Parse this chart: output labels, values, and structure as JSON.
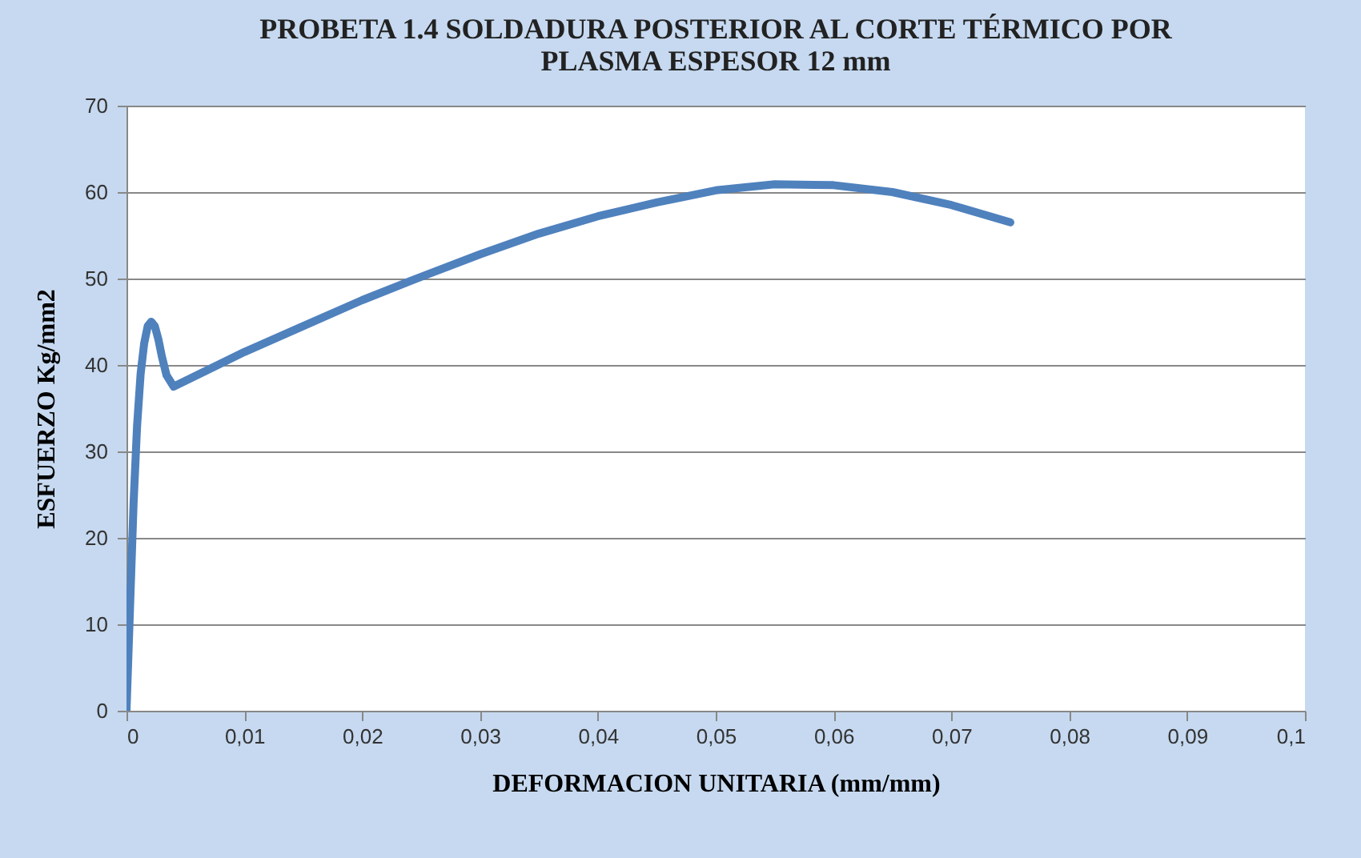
{
  "chart_data": {
    "type": "line",
    "title": "PROBETA 1.4 SOLDADURA POSTERIOR AL CORTE  TÉRMICO POR PLASMA ESPESOR 12 mm",
    "xlabel": "DEFORMACION  UNITARIA  (mm/mm)",
    "ylabel": "ESFUERZO  Kg/mm2",
    "x": [
      0,
      0.0003,
      0.0006,
      0.0009,
      0.0012,
      0.0015,
      0.0018,
      0.0021,
      0.0024,
      0.0027,
      0.003,
      0.0034,
      0.004,
      0.01,
      0.015,
      0.02,
      0.025,
      0.03,
      0.035,
      0.04,
      0.045,
      0.05,
      0.055,
      0.06,
      0.065,
      0.07,
      0.075
    ],
    "series": [
      {
        "color": "#4f81bd",
        "values": [
          0,
          12,
          24,
          33,
          39,
          42.5,
          44.5,
          45,
          44.5,
          43,
          41,
          38.8,
          37.5,
          41.5,
          44.5,
          47.5,
          50.2,
          52.8,
          55.2,
          57.2,
          58.8,
          60.2,
          60.9,
          60.8,
          60,
          58.5,
          56.5
        ]
      }
    ],
    "xlim": [
      0,
      0.1
    ],
    "ylim": [
      0,
      70
    ],
    "xticks": [
      {
        "value": 0,
        "label": "0"
      },
      {
        "value": 0.01,
        "label": "0,01"
      },
      {
        "value": 0.02,
        "label": "0,02"
      },
      {
        "value": 0.03,
        "label": "0,03"
      },
      {
        "value": 0.04,
        "label": "0,04"
      },
      {
        "value": 0.05,
        "label": "0,05"
      },
      {
        "value": 0.06,
        "label": "0,06"
      },
      {
        "value": 0.07,
        "label": "0,07"
      },
      {
        "value": 0.08,
        "label": "0,08"
      },
      {
        "value": 0.09,
        "label": "0,09"
      },
      {
        "value": 0.1,
        "label": "0,1"
      }
    ],
    "yticks": [
      0,
      10,
      20,
      30,
      40,
      50,
      60,
      70
    ],
    "grid": "y",
    "marker": "none",
    "line_style": "solid",
    "legend": false
  }
}
